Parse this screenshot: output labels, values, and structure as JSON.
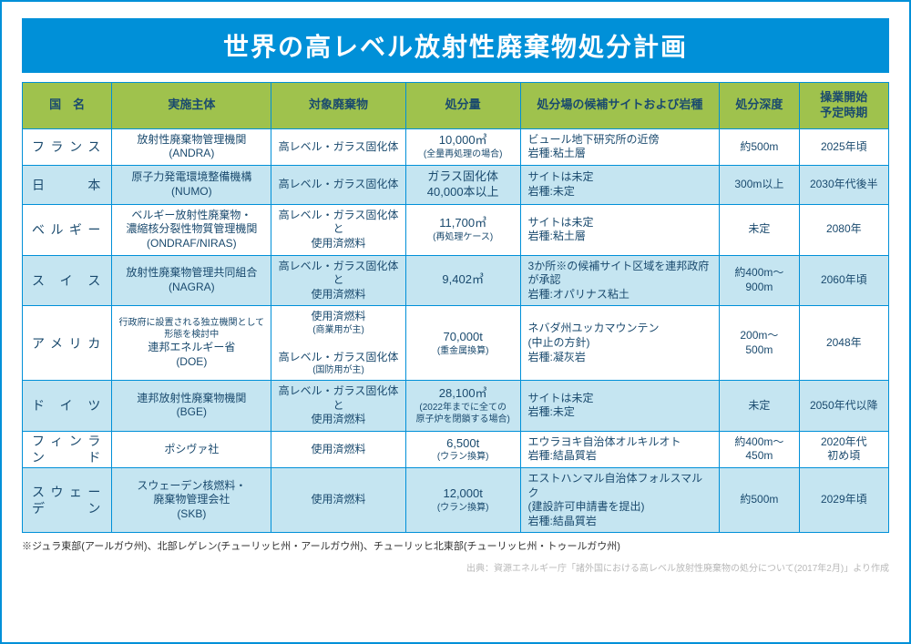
{
  "title": "世界の高レベル放射性廃棄物処分計画",
  "columns": [
    "国　名",
    "実施主体",
    "対象廃棄物",
    "処分量",
    "処分場の候補サイトおよび岩種",
    "処分深度",
    "操業開始\n予定時期"
  ],
  "rows": [
    {
      "country": "フランス",
      "agency": "放射性廃棄物管理機関\n(ANDRA)",
      "waste": "高レベル・ガラス固化体",
      "amount": "10,000㎥",
      "amount_sub": "(全量再処理の場合)",
      "site": "ビュール地下研究所の近傍\n岩種:粘土層",
      "depth": "約500m",
      "start": "2025年頃"
    },
    {
      "country": "日　　本",
      "agency": "原子力発電環境整備機構\n(NUMO)",
      "waste": "高レベル・ガラス固化体",
      "amount": "ガラス固化体\n40,000本以上",
      "amount_sub": "",
      "site": "サイトは未定\n岩種:未定",
      "depth": "300m以上",
      "start": "2030年代後半"
    },
    {
      "country": "ベルギー",
      "agency": "ベルギー放射性廃棄物・\n濃縮核分裂性物質管理機関\n(ONDRAF/NIRAS)",
      "waste": "高レベル・ガラス固化体と\n使用済燃料",
      "amount": "11,700㎥",
      "amount_sub": "(再処理ケース)",
      "site": "サイトは未定\n岩種:粘土層",
      "depth": "未定",
      "start": "2080年"
    },
    {
      "country": "ス イ ス",
      "agency": "放射性廃棄物管理共同組合\n(NAGRA)",
      "waste": "高レベル・ガラス固化体と\n使用済燃料",
      "amount": "9,402㎥",
      "amount_sub": "",
      "site": "3か所※の候補サイト区域を連邦政府が承認\n岩種:オパリナス粘土",
      "depth": "約400m～\n900m",
      "start": "2060年頃"
    },
    {
      "country": "アメリカ",
      "agency": "行政府に設置される独立機関として形態を検討中\n連邦エネルギー省\n(DOE)",
      "agency_sub_first": true,
      "waste": "使用済燃料\n(商業用が主)\n高レベル・ガラス固化体\n(国防用が主)",
      "amount": "70,000t",
      "amount_sub": "(重金属換算)",
      "site": "ネバダ州ユッカマウンテン\n(中止の方針)\n岩種:凝灰岩",
      "depth": "200m～\n500m",
      "start": "2048年"
    },
    {
      "country": "ド イ ツ",
      "agency": "連邦放射性廃棄物機関\n(BGE)",
      "waste": "高レベル・ガラス固化体と\n使用済燃料",
      "amount": "28,100㎥",
      "amount_sub": "(2022年までに全ての\n原子炉を閉鎖する場合)",
      "site": "サイトは未定\n岩種:未定",
      "depth": "未定",
      "start": "2050年代以降"
    },
    {
      "country": "フィンランド",
      "agency": "ポシヴァ社",
      "waste": "使用済燃料",
      "amount": "6,500t",
      "amount_sub": "(ウラン換算)",
      "site": "エウラヨキ自治体オルキルオト\n岩種:結晶質岩",
      "depth": "約400m～\n450m",
      "start": "2020年代\n初め頃"
    },
    {
      "country": "スウェーデン",
      "agency": "スウェーデン核燃料・\n廃棄物管理会社\n(SKB)",
      "waste": "使用済燃料",
      "amount": "12,000t",
      "amount_sub": "(ウラン換算)",
      "site": "エストハンマル自治体フォルスマルク\n(建設許可申請書を提出)\n岩種:結晶質岩",
      "depth": "約500m",
      "start": "2029年頃"
    }
  ],
  "footnote": "※ジュラ東部(アールガウ州)、北部レゲレン(チューリッヒ州・アールガウ州)、チューリッヒ北東部(チューリッヒ州・トゥールガウ州)",
  "source": "出典：資源エネルギー庁「諸外国における高レベル放射性廃棄物の処分について(2017年2月)」より作成",
  "colors": {
    "border": "#0090d8",
    "title_bg": "#0090d8",
    "header_bg": "#9fc24d",
    "row_even_bg": "#c5e5f1",
    "row_odd_bg": "#ffffff",
    "text": "#1a4a6e"
  }
}
